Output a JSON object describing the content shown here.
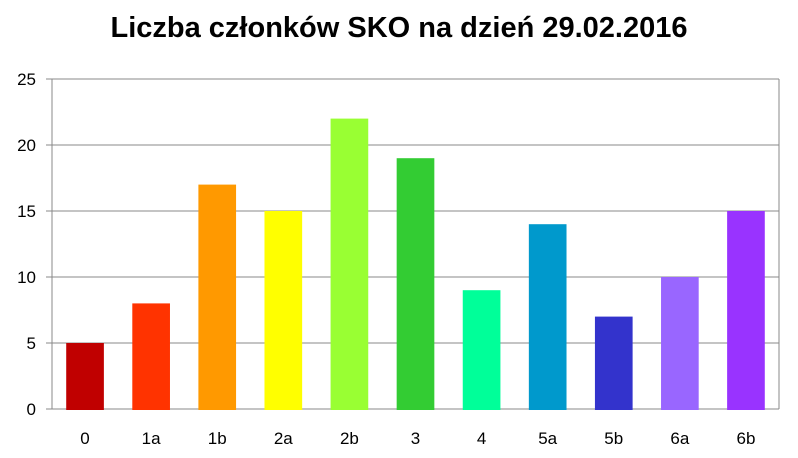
{
  "chart_data": {
    "type": "bar",
    "title": "Liczba członków SKO na dzień 29.02.2016",
    "xlabel": "",
    "ylabel": "",
    "categories": [
      "0",
      "1a",
      "1b",
      "2a",
      "2b",
      "3",
      "4",
      "5a",
      "5b",
      "6a",
      "6b"
    ],
    "values": [
      5,
      8,
      17,
      15,
      22,
      19,
      9,
      14,
      7,
      10,
      15
    ],
    "colors": [
      "#c00000",
      "#ff3300",
      "#ff9900",
      "#ffff00",
      "#99ff33",
      "#33cc33",
      "#00ff99",
      "#0099cc",
      "#3333cc",
      "#9966ff",
      "#9933ff"
    ],
    "ylim": [
      0,
      25
    ],
    "yticks": [
      0,
      5,
      10,
      15,
      20,
      25
    ],
    "grid": true,
    "legend": "none"
  }
}
